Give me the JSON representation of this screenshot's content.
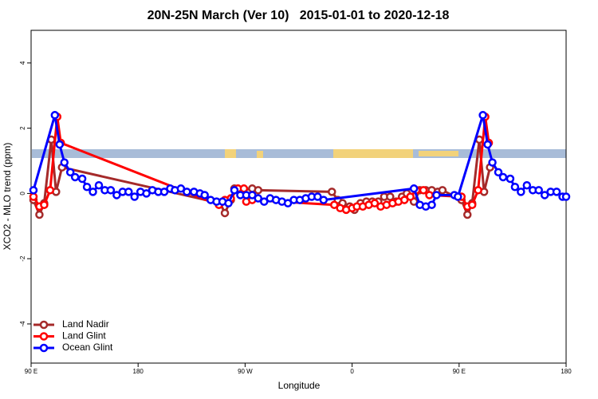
{
  "chart_data": {
    "type": "line",
    "title": "20N-25N March (Ver 10)   2015-01-01 to 2020-12-18",
    "x_label": "Longitude",
    "y_label": "XCO2 - MLO trend (ppm)",
    "xlim": [
      90,
      540
    ],
    "xticks": [
      {
        "value": 90,
        "label": "90 E"
      },
      {
        "value": 180,
        "label": "180"
      },
      {
        "value": 270,
        "label": "90 W"
      },
      {
        "value": 360,
        "label": "0"
      },
      {
        "value": 450,
        "label": "90 E"
      },
      {
        "value": 540,
        "label": "180"
      }
    ],
    "ylim": [
      -5.2,
      5
    ],
    "yticks": [
      -4,
      -2,
      0,
      2,
      4
    ],
    "legend": "bottomleft",
    "series": [
      {
        "name": "Land Nadir",
        "color": "#a52a2a",
        "x": [
          92,
          97,
          101,
          107,
          111,
          116,
          249,
          253,
          258,
          261,
          268,
          276,
          281,
          343,
          348,
          352,
          358,
          362,
          367,
          372,
          377,
          382,
          387,
          392,
          397,
          402,
          406,
          412,
          417,
          422,
          427,
          432,
          436,
          452,
          457,
          461,
          467,
          471,
          476
        ],
        "values": [
          -0.2,
          -0.65,
          -0.3,
          1.65,
          0.05,
          0.8,
          -0.3,
          -0.6,
          -0.2,
          0.15,
          0.1,
          0.15,
          0.1,
          0.05,
          -0.2,
          -0.3,
          -0.4,
          -0.5,
          -0.3,
          -0.25,
          -0.25,
          -0.25,
          -0.1,
          -0.1,
          -0.25,
          -0.1,
          0,
          -0.25,
          0.1,
          0.1,
          0.1,
          0.05,
          0.1,
          -0.2,
          -0.65,
          -0.3,
          1.65,
          0.05,
          0.8
        ]
      },
      {
        "name": "Land Glint",
        "color": "#ff0000",
        "x": [
          92,
          97,
          101,
          106,
          112,
          115,
          248,
          253,
          258,
          264,
          269,
          271,
          276,
          345,
          350,
          355,
          360,
          364,
          369,
          374,
          379,
          384,
          389,
          394,
          399,
          404,
          409,
          414,
          420,
          425,
          452,
          457,
          461,
          466,
          472,
          475
        ],
        "values": [
          -0.1,
          -0.4,
          -0.35,
          0.1,
          2.35,
          1.55,
          -0.35,
          -0.2,
          -0.15,
          0.15,
          0.15,
          -0.25,
          -0.2,
          -0.35,
          -0.45,
          -0.5,
          -0.45,
          -0.4,
          -0.4,
          -0.35,
          -0.3,
          -0.4,
          -0.35,
          -0.3,
          -0.25,
          -0.2,
          -0.1,
          0.1,
          0.1,
          -0.05,
          -0.1,
          -0.4,
          -0.35,
          0.1,
          2.35,
          1.55
        ]
      },
      {
        "name": "Ocean Glint",
        "color": "#0000ff",
        "x": [
          92,
          110,
          114,
          118,
          123,
          127,
          133,
          137,
          142,
          147,
          152,
          157,
          162,
          167,
          172,
          177,
          182,
          187,
          192,
          197,
          202,
          207,
          211,
          216,
          221,
          227,
          232,
          236,
          241,
          246,
          251,
          256,
          261,
          266,
          271,
          276,
          281,
          286,
          291,
          296,
          301,
          306,
          311,
          316,
          321,
          326,
          331,
          336,
          412,
          417,
          422,
          427,
          431,
          446,
          449,
          470,
          474,
          478,
          483,
          487,
          493,
          497,
          502,
          507,
          512,
          517,
          522,
          527,
          532,
          537,
          540
        ],
        "values": [
          0.1,
          2.4,
          1.5,
          0.95,
          0.65,
          0.5,
          0.45,
          0.2,
          0.05,
          0.25,
          0.1,
          0.1,
          -0.05,
          0.05,
          0.05,
          -0.1,
          0.05,
          0,
          0.1,
          0.05,
          0.05,
          0.15,
          0.1,
          0.15,
          0.05,
          0.05,
          0,
          -0.05,
          -0.2,
          -0.25,
          -0.25,
          -0.3,
          0.1,
          -0.05,
          -0.05,
          -0.05,
          -0.15,
          -0.25,
          -0.15,
          -0.2,
          -0.25,
          -0.3,
          -0.2,
          -0.2,
          -0.15,
          -0.1,
          -0.1,
          -0.2,
          0.15,
          -0.35,
          -0.4,
          -0.35,
          -0.05,
          -0.05,
          -0.1,
          2.4,
          1.5,
          0.95,
          0.65,
          0.5,
          0.45,
          0.2,
          0.05,
          0.25,
          0.1,
          0.1,
          -0.05,
          0.05,
          0.05,
          -0.1,
          -0.1
        ]
      }
    ]
  }
}
